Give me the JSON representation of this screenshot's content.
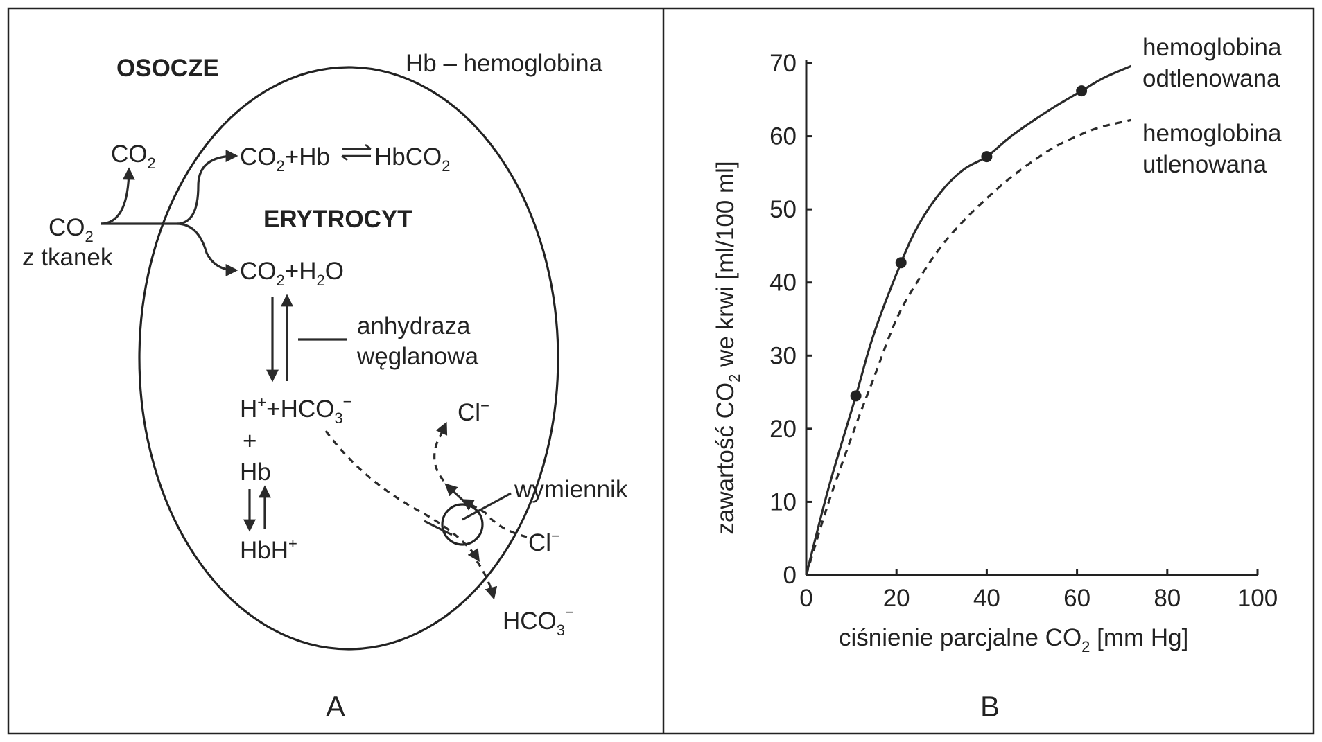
{
  "panel_a": {
    "label": "A",
    "plasma": "OSOCZE",
    "legend": "Hb – hemoglobina",
    "cell": "ERYTROCYT",
    "co2_from_tissue": {
      "main": "CO",
      "sub": "2",
      "line2": "z tkanek"
    },
    "co2_out": {
      "main": "CO",
      "sub": "2"
    },
    "reaction_hb": {
      "a": "CO",
      "a_sub": "2",
      "b": "+Hb",
      "c": "HbCO",
      "c_sub": "2"
    },
    "reaction_water": {
      "a": "CO",
      "a_sub": "2",
      "b": "+H",
      "b_sub": "2",
      "c": "O"
    },
    "enzyme": {
      "line1": "anhydraza",
      "line2": "węglanowa"
    },
    "ions": {
      "h": "H",
      "h_sup": "+",
      "hco3": "+HCO",
      "hco3_sub": "3",
      "hco3_sup": "−"
    },
    "plus": "+",
    "hb": "Hb",
    "hbh": {
      "main": "HbH",
      "sup": "+"
    },
    "cl_top": {
      "main": "Cl",
      "sup": "−"
    },
    "cl_bottom": {
      "main": "Cl",
      "sup": "−"
    },
    "exchanger": "wymiennik",
    "hco3_out": {
      "main": "HCO",
      "sub": "3",
      "sup": "−"
    }
  },
  "panel_b": {
    "label": "B",
    "curve1_label": {
      "line1": "hemoglobina",
      "line2": "odtlenowana"
    },
    "curve2_label": {
      "line1": "hemoglobina",
      "line2": "utlenowana"
    }
  },
  "chart_data": {
    "type": "line",
    "title": "",
    "xlabel": {
      "main": "ciśnienie parcjalne CO",
      "sub": "2",
      "unit": " [mm Hg]"
    },
    "ylabel": {
      "main": "zawartość CO",
      "sub": "2",
      "unit": " we krwi [ml/100 ml]"
    },
    "xlim": [
      0,
      100
    ],
    "ylim": [
      0,
      70
    ],
    "xticks": [
      0,
      20,
      40,
      60,
      80,
      100
    ],
    "yticks": [
      0,
      10,
      20,
      30,
      40,
      50,
      60,
      70
    ],
    "series": [
      {
        "name": "hemoglobina odtlenowana",
        "style": "solid",
        "x": [
          0,
          5,
          11,
          15,
          21,
          25,
          30,
          35,
          40,
          45,
          50,
          55,
          61,
          66,
          72
        ],
        "y": [
          0,
          12,
          24.5,
          33,
          42.7,
          48,
          52.5,
          55.5,
          57.2,
          59.8,
          62,
          64,
          66.2,
          68,
          69.6
        ],
        "markers": [
          [
            11,
            24.5
          ],
          [
            21,
            42.7
          ],
          [
            40,
            57.2
          ],
          [
            61,
            66.2
          ]
        ]
      },
      {
        "name": "hemoglobina utlenowana",
        "style": "dashed",
        "x": [
          0,
          5,
          11,
          15,
          20,
          25,
          30,
          35,
          40,
          45,
          50,
          55,
          60,
          65,
          72
        ],
        "y": [
          0,
          10,
          20.5,
          27,
          35,
          40.5,
          45,
          48.5,
          51.5,
          54.2,
          56.5,
          58.5,
          60,
          61.2,
          62.2
        ],
        "markers": []
      }
    ]
  }
}
